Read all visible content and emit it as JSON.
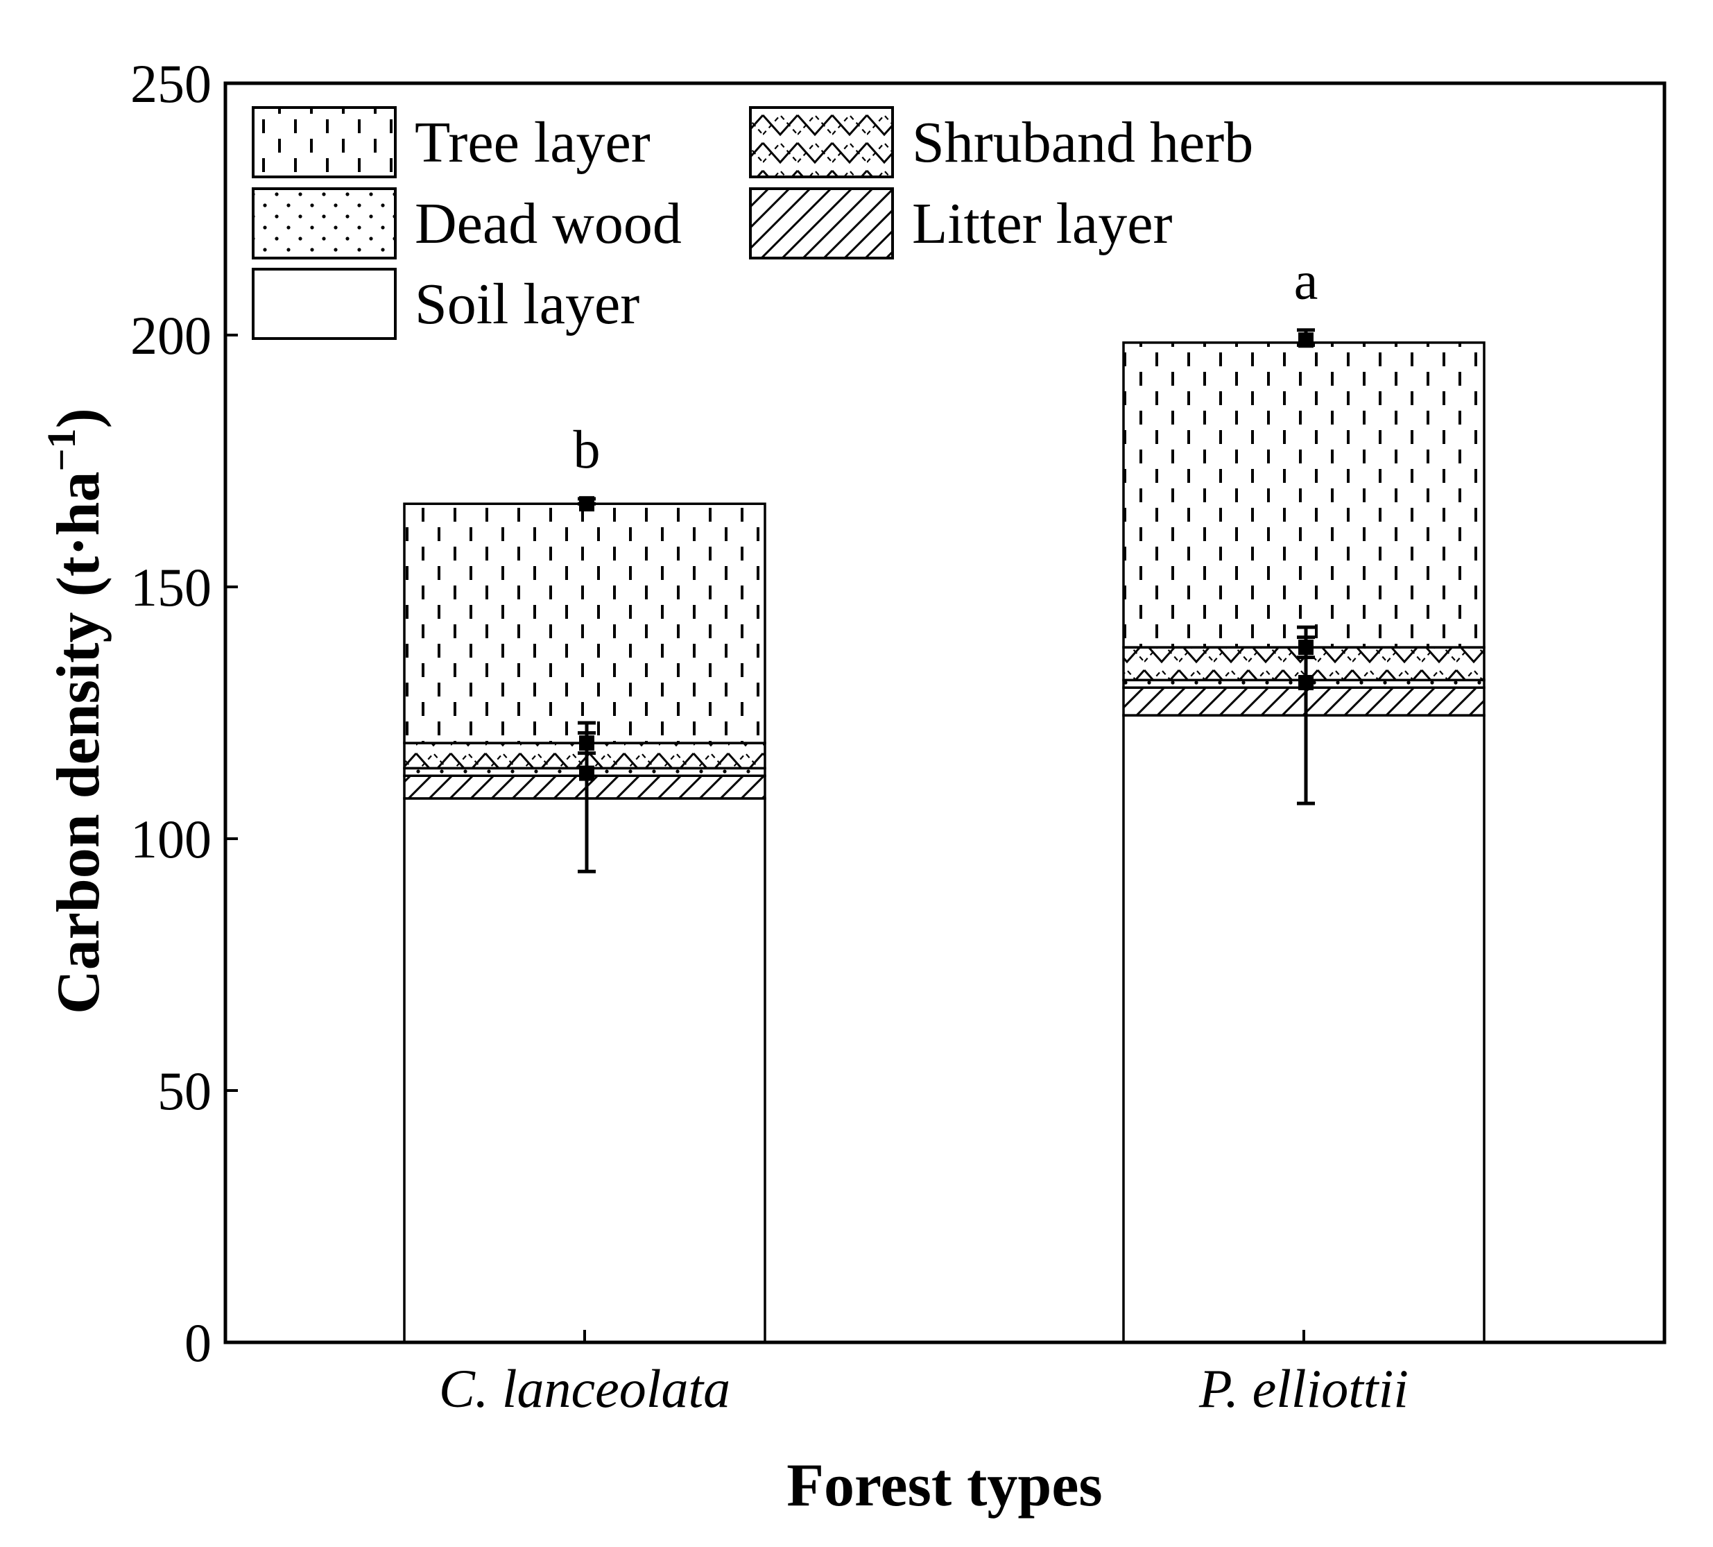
{
  "chart_data": {
    "type": "bar",
    "stacked": true,
    "xlabel": "Forest types",
    "ylabel": "Carbon density (t·ha",
    "ylabel_sup": "−1",
    "ylabel_end": ")",
    "ylim": [
      0,
      250
    ],
    "yticks": [
      "0",
      "50",
      "100",
      "150",
      "200",
      "250"
    ],
    "categories": [
      "C. lanceolata",
      "P. elliottii"
    ],
    "significance": [
      "b",
      "a"
    ],
    "series": [
      {
        "name": "Soil layer",
        "pattern": "none",
        "values": [
          108,
          124.5
        ]
      },
      {
        "name": "Litter layer",
        "pattern": "hatch",
        "values": [
          4.5,
          5.5
        ]
      },
      {
        "name": "Dead wood",
        "pattern": "dots",
        "values": [
          1.5,
          1.5
        ]
      },
      {
        "name": "Shruband herb",
        "pattern": "cross",
        "values": [
          5,
          6.5
        ]
      },
      {
        "name": "Tree layer",
        "pattern": "dashes",
        "values": [
          47.5,
          60.5
        ]
      }
    ],
    "error_bars": [
      {
        "category": "C. lanceolata",
        "center": 113,
        "low": 93.5,
        "high": 123
      },
      {
        "category": "C. lanceolata",
        "center": 119,
        "low": 117,
        "high": 121
      },
      {
        "category": "C. lanceolata",
        "center": 166.5,
        "low": 166.5,
        "high": 167.5
      },
      {
        "category": "P. elliottii",
        "center": 131,
        "low": 107,
        "high": 142
      },
      {
        "category": "P. elliottii",
        "center": 138,
        "low": 136,
        "high": 140
      },
      {
        "category": "P. elliottii",
        "center": 199,
        "low": 198,
        "high": 201
      }
    ],
    "legend": {
      "placement": "top-left",
      "items": [
        "Tree layer",
        "Shruband herb",
        "Dead wood",
        "Litter layer",
        "Soil layer"
      ]
    },
    "colors": {
      "ink": "#000000",
      "fill": "#ffffff"
    }
  }
}
